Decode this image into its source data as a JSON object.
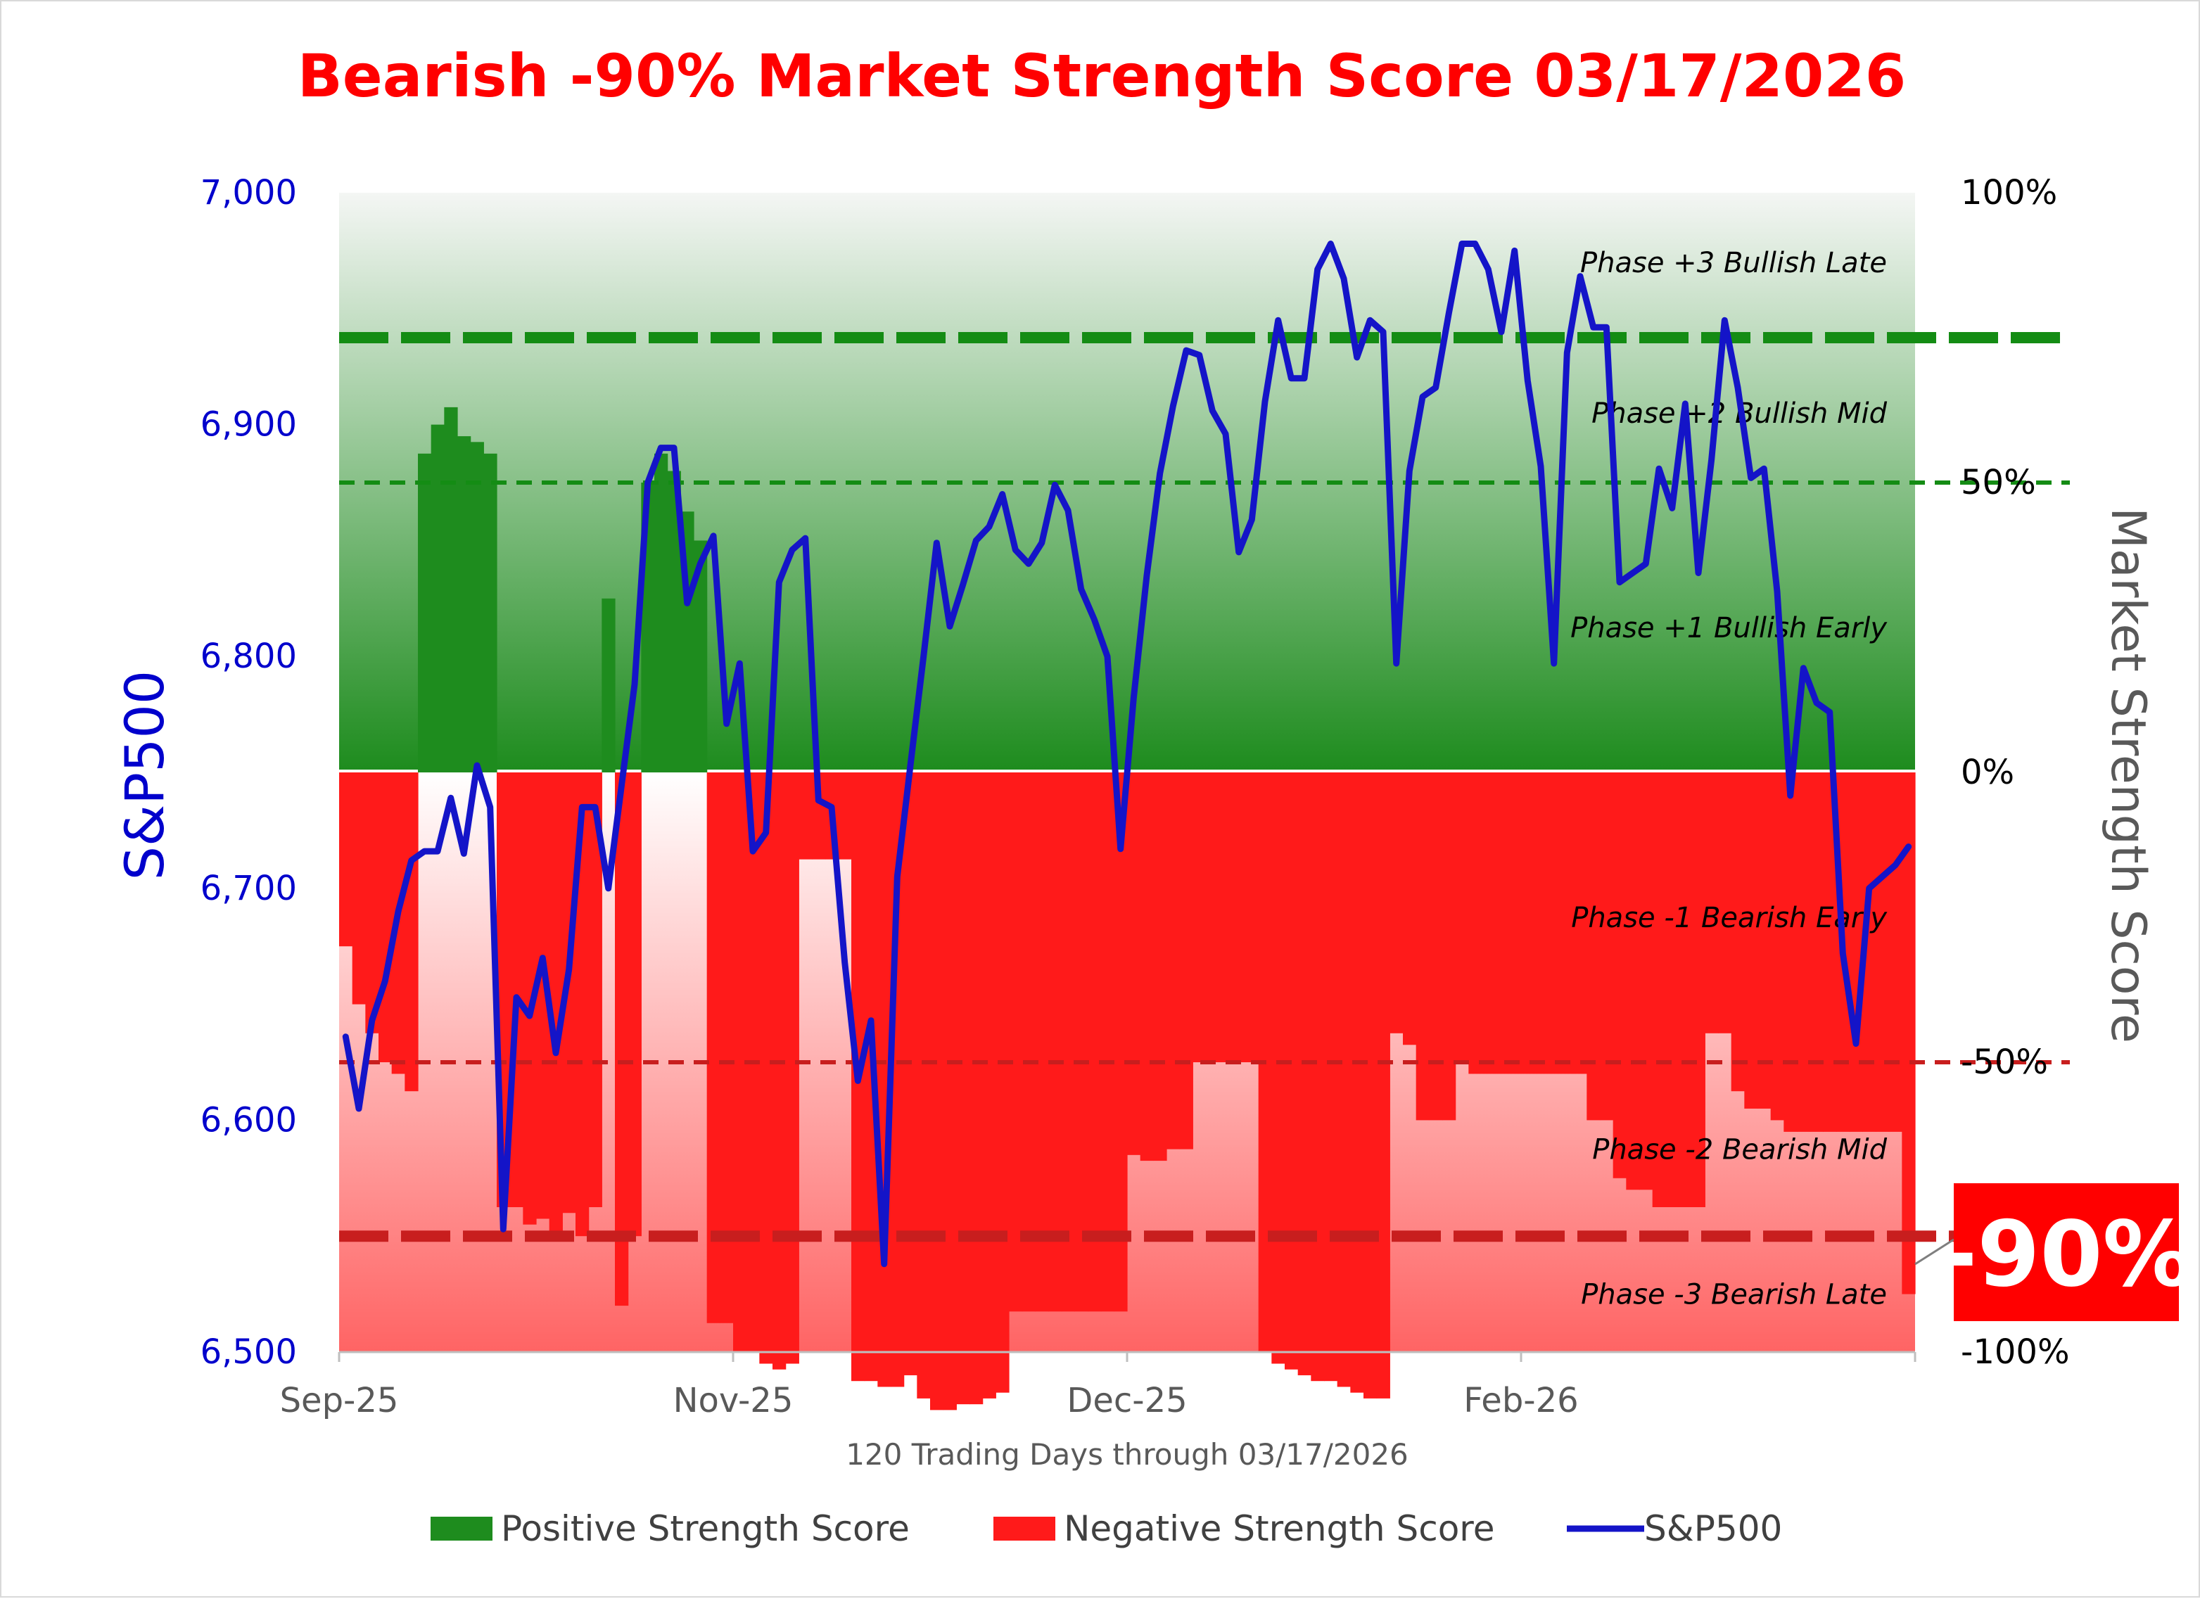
{
  "title": "Bearish -90% Market Strength Score 03/17/2026",
  "xlabel": "120 Trading Days through 03/17/2026",
  "ylabel_left": "S&P500",
  "ylabel_right": "Market Strength Score",
  "score_badge": "-90%",
  "colors": {
    "positive": "#1e8c1e",
    "negative": "#ff1a1a",
    "line": "#1414c8",
    "title": "#ff0000",
    "left_axis": "#0000cc"
  },
  "legend": {
    "positive": "Positive Strength Score",
    "negative": "Negative Strength Score",
    "line": "S&P500"
  },
  "left_ticks": [
    "7,000",
    "6,900",
    "6,800",
    "6,700",
    "6,600",
    "6,500"
  ],
  "right_ticks": [
    "100%",
    "50%",
    "0%",
    "-50%",
    "-100%"
  ],
  "x_ticks": [
    "Sep-25",
    "Nov-25",
    "Dec-25",
    "Feb-26"
  ],
  "phases": [
    {
      "label": "Phase +3 Bullish Late",
      "level": 88
    },
    {
      "label": "Phase +2 Bullish Mid",
      "level": 62
    },
    {
      "label": "Phase +1 Bullish Early",
      "level": 25
    },
    {
      "label": "Phase -1 Bearish Early",
      "level": -25
    },
    {
      "label": "Phase -2 Bearish Mid",
      "level": -65
    },
    {
      "label": "Phase -3 Bearish Late",
      "level": -90
    }
  ],
  "chart_data": {
    "type": "bar",
    "n_days": 120,
    "x_tick_positions": [
      0,
      30,
      60,
      90
    ],
    "ylim_left": [
      6500,
      7000
    ],
    "ylim_right": [
      -100,
      100
    ],
    "threshold_lines": [
      75,
      50,
      -50,
      -80
    ],
    "series": [
      {
        "name": "Positive Strength Score",
        "axis": "right",
        "values": [
          -30,
          -40,
          -45,
          -50,
          -52,
          -55,
          55,
          60,
          63,
          58,
          57,
          55,
          -75,
          -75,
          -78,
          -77,
          -80,
          -76,
          -80,
          -75,
          30,
          -92,
          -80,
          50,
          55,
          52,
          45,
          40,
          -95,
          -95,
          -100,
          -100,
          -102,
          -103,
          -102,
          -15,
          -15,
          -15,
          -15,
          -105,
          -105,
          -106,
          -106,
          -104,
          -108,
          -110,
          -110,
          -109,
          -109,
          -108,
          -107,
          -93,
          -93,
          -93,
          -93,
          -93,
          -93,
          -93,
          -93,
          -93,
          -66,
          -67,
          -67,
          -65,
          -65,
          -50,
          -50,
          -50,
          -50,
          -50,
          -100,
          -102,
          -103,
          -104,
          -105,
          -105,
          -106,
          -107,
          -108,
          -108,
          -45,
          -47,
          -60,
          -60,
          -60,
          -50,
          -52,
          -52,
          -52,
          -52,
          -52,
          -52,
          -52,
          -52,
          -52,
          -60,
          -60,
          -70,
          -72,
          -72,
          -75,
          -75,
          -75,
          -75,
          -45,
          -45,
          -55,
          -58,
          -58,
          -60,
          -62,
          -62,
          -62,
          -62,
          -62,
          -62,
          -62,
          -62,
          -62,
          -90
        ]
      },
      {
        "name": "S&P500",
        "axis": "left",
        "values": [
          6636,
          6605,
          6643,
          6660,
          6690,
          6712,
          6716,
          6716,
          6739,
          6715,
          6753,
          6735,
          6553,
          6653,
          6645,
          6670,
          6629,
          6665,
          6735,
          6735,
          6700,
          6744,
          6788,
          6875,
          6890,
          6890,
          6823,
          6840,
          6852,
          6771,
          6797,
          6716,
          6724,
          6832,
          6846,
          6851,
          6738,
          6735,
          6668,
          6617,
          6643,
          6538,
          6705,
          6753,
          6800,
          6849,
          6813,
          6831,
          6850,
          6856,
          6870,
          6846,
          6840,
          6849,
          6874,
          6863,
          6829,
          6816,
          6800,
          6717,
          6782,
          6835,
          6879,
          6908,
          6932,
          6930,
          6906,
          6896,
          6845,
          6859,
          6910,
          6945,
          6920,
          6920,
          6967,
          6978,
          6963,
          6929,
          6945,
          6940,
          6797,
          6880,
          6912,
          6916,
          6948,
          6978,
          6978,
          6967,
          6940,
          6975,
          6919,
          6882,
          6797,
          6931,
          6964,
          6942,
          6942,
          6832,
          6836,
          6840,
          6881,
          6864,
          6909,
          6836,
          6885,
          6945,
          6916,
          6877,
          6881,
          6828,
          6740,
          6795,
          6780,
          6776,
          6672,
          6633,
          6700,
          6705,
          6710,
          6718
        ]
      }
    ]
  }
}
